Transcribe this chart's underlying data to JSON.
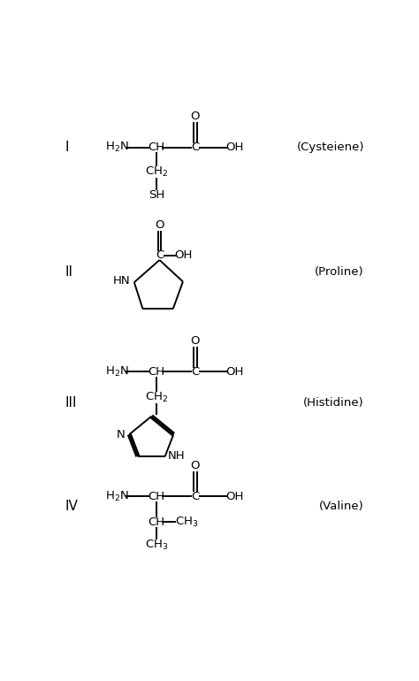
{
  "background": "#ffffff",
  "structures": [
    {
      "label": "I",
      "name": "(Cysteiene)"
    },
    {
      "label": "II",
      "name": "(Proline)"
    },
    {
      "label": "III",
      "name": "(Histidine)"
    },
    {
      "label": "IV",
      "name": "(Valine)"
    }
  ],
  "font_size": 9.5,
  "label_font_size": 11,
  "lw": 1.4,
  "xlim": [
    0,
    10
  ],
  "ylim": [
    0,
    16
  ],
  "figsize": [
    4.74,
    7.7
  ],
  "dpi": 100
}
